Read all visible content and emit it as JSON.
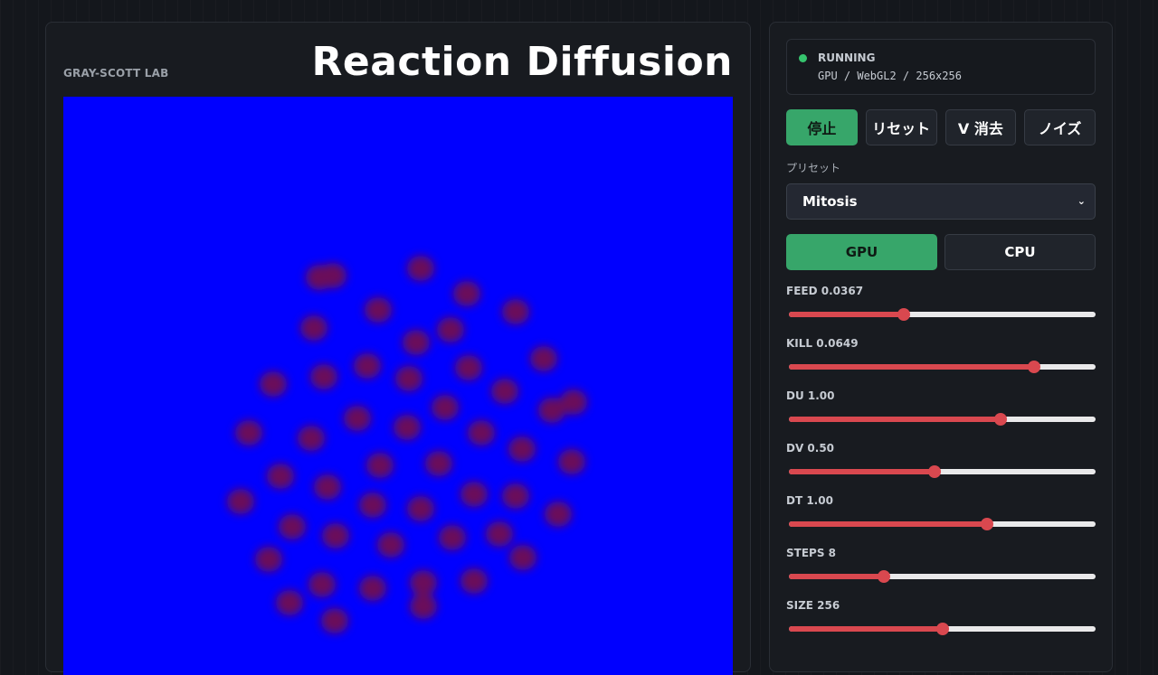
{
  "header": {
    "lab_label": "GRAY-SCOTT LAB",
    "title": "Reaction Diffusion"
  },
  "status": {
    "state": "RUNNING",
    "detail": "GPU / WebGL2 / 256x256",
    "dot_color": "#36c46e"
  },
  "controls": {
    "stop_label": "停止",
    "reset_label": "リセット",
    "clear_v_label": "V 消去",
    "noise_label": "ノイズ"
  },
  "preset": {
    "label": "プリセット",
    "selected": "Mitosis"
  },
  "mode": {
    "gpu_label": "GPU",
    "cpu_label": "CPU",
    "active": "GPU"
  },
  "sliders": [
    {
      "label": "FEED 0.0367",
      "fraction": 0.375
    },
    {
      "label": "KILL 0.0649",
      "fraction": 0.8
    },
    {
      "label": "DU 1.00",
      "fraction": 0.69
    },
    {
      "label": "DV 0.50",
      "fraction": 0.475
    },
    {
      "label": "DT 1.00",
      "fraction": 0.645
    },
    {
      "label": "STEPS 8",
      "fraction": 0.31
    },
    {
      "label": "SIZE 256",
      "fraction": 0.5
    }
  ],
  "colors": {
    "accent_green": "#37a66a",
    "slider_red": "#d9484f",
    "canvas_blue": "#0000ff",
    "spot_color": "#6a0a5a"
  }
}
